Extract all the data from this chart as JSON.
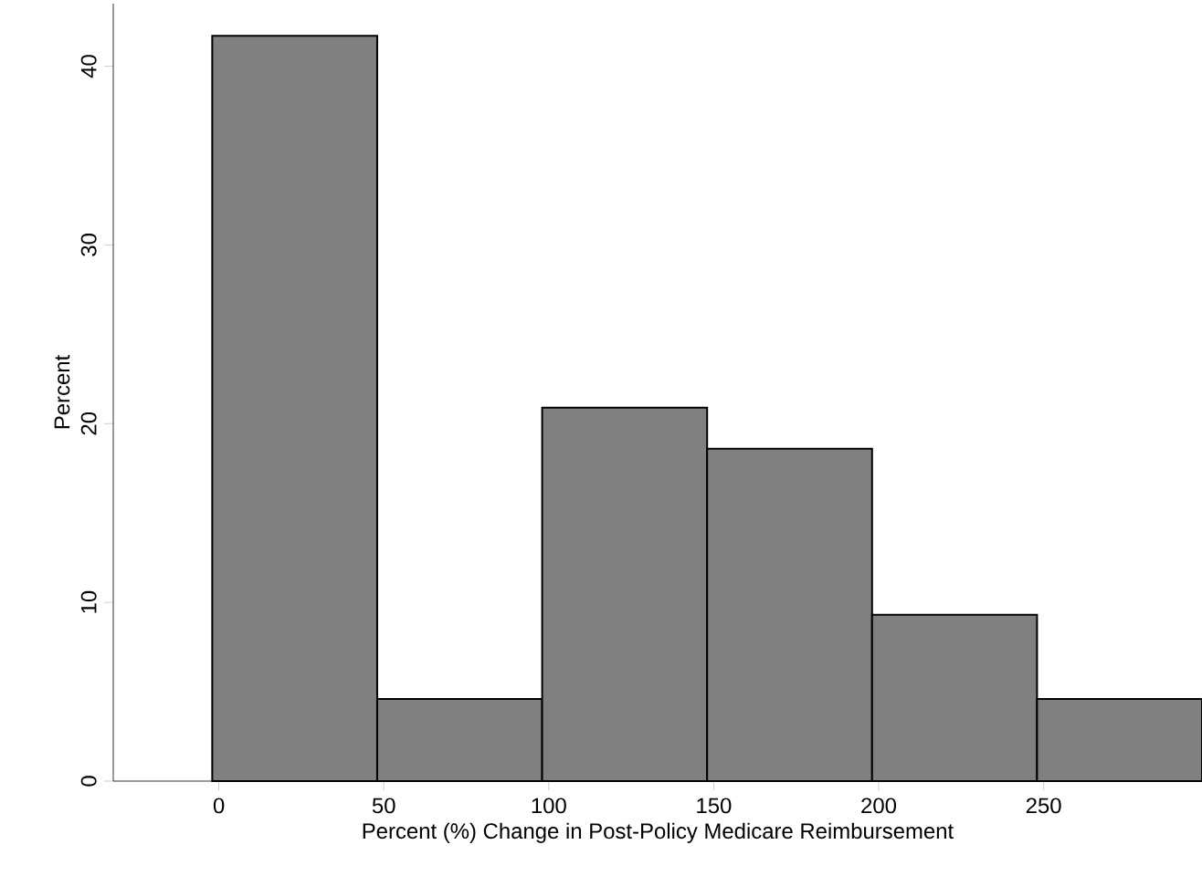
{
  "chart_data": {
    "type": "histogram",
    "xlabel": "Percent (%) Change in Post-Policy Medicare Reimbursement",
    "ylabel": "Percent",
    "bins": [
      -2,
      48,
      98,
      148,
      198,
      248,
      298
    ],
    "values": [
      41.7,
      4.6,
      20.9,
      18.6,
      9.3,
      4.6
    ],
    "color": "#808080",
    "xlim": [
      -32,
      298
    ],
    "ylim": [
      0,
      43.5
    ],
    "xticks": [
      0,
      50,
      100,
      150,
      200,
      250
    ],
    "yticks": [
      0,
      10,
      20,
      30,
      40
    ],
    "grid": false
  }
}
